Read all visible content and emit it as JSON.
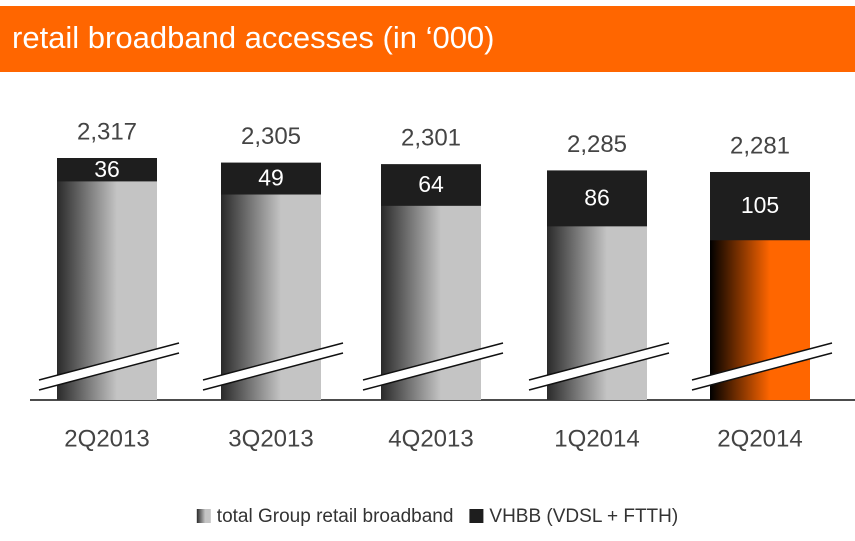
{
  "chart_data": {
    "type": "bar",
    "title": "retail broadband accesses (in ‘000)",
    "categories": [
      "2Q2013",
      "3Q2013",
      "4Q2013",
      "1Q2014",
      "2Q2014"
    ],
    "series": [
      {
        "name": "total Group retail broadband",
        "color": "#c4c4c4",
        "colors": [
          "#c4c4c4",
          "#c4c4c4",
          "#c4c4c4",
          "#c4c4c4",
          "#ff6600"
        ],
        "values": [
          2317,
          2305,
          2301,
          2285,
          2281
        ],
        "value_labels": [
          "2,317",
          "2,305",
          "2,301",
          "2,285",
          "2,281"
        ]
      },
      {
        "name": "VHBB (VDSL + FTTH)",
        "color": "#1e1e1e",
        "values": [
          36,
          49,
          64,
          86,
          105
        ]
      }
    ],
    "header_color": "#ff6600"
  }
}
